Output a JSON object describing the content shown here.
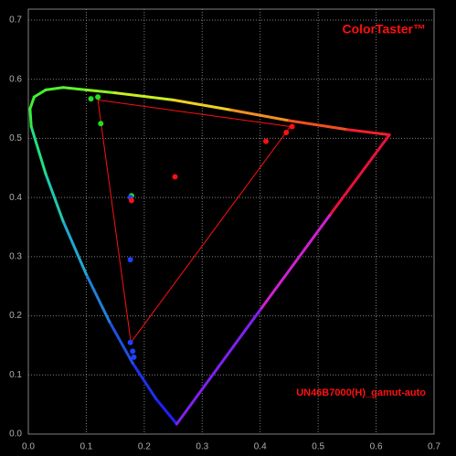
{
  "chart_data": {
    "type": "scatter",
    "title": "ColorTaster™",
    "annotation": "UN46B7000(H)_gamut-auto",
    "xlim": [
      0,
      0.7
    ],
    "ylim": [
      0,
      0.7
    ],
    "xticks": [
      {
        "value": 0,
        "label": "0.0"
      },
      0.1,
      0.2,
      0.3,
      0.4,
      0.5,
      0.6,
      0.7
    ],
    "yticks": [
      {
        "value": 0,
        "label": "0.0"
      },
      0.1,
      0.2,
      0.3,
      0.4,
      0.5,
      0.6,
      0.7
    ],
    "grid": true,
    "locus": {
      "x": [
        0.256,
        0.22,
        0.18,
        0.14,
        0.1,
        0.06,
        0.03,
        0.005,
        0.003,
        0.01,
        0.03,
        0.06,
        0.1,
        0.15,
        0.25,
        0.35,
        0.45,
        0.55,
        0.623,
        0.52,
        0.4,
        0.256
      ],
      "y": [
        0.017,
        0.06,
        0.12,
        0.19,
        0.27,
        0.36,
        0.44,
        0.52,
        0.55,
        0.57,
        0.582,
        0.586,
        0.582,
        0.577,
        0.565,
        0.548,
        0.53,
        0.515,
        0.506,
        0.37,
        0.21,
        0.017
      ],
      "colors": [
        "#2020ff",
        "#2030f0",
        "#2050e0",
        "#2080d8",
        "#20a8d0",
        "#20c8b0",
        "#20e080",
        "#30ee40",
        "#40f030",
        "#40f030",
        "#50f030",
        "#60f030",
        "#90f020",
        "#c8f020",
        "#f0d020",
        "#f09020",
        "#f05020",
        "#f02030",
        "#e8103c",
        "#d020d0",
        "#8020f0",
        "#2020ff"
      ]
    },
    "gamut": {
      "x": [
        0.12,
        0.452,
        0.177,
        0.12
      ],
      "y": [
        0.565,
        0.52,
        0.155,
        0.565
      ],
      "color": "#ff1010"
    },
    "points": {
      "x": [
        0.108,
        0.12,
        0.125,
        0.455,
        0.445,
        0.41,
        0.253,
        0.178,
        0.176,
        0.178,
        0.176,
        0.18,
        0.182,
        0.176
      ],
      "y": [
        0.567,
        0.57,
        0.525,
        0.52,
        0.51,
        0.495,
        0.435,
        0.403,
        0.4,
        0.395,
        0.295,
        0.14,
        0.13,
        0.155
      ],
      "colors": [
        "#20e020",
        "#20e020",
        "#20e020",
        "#ff1010",
        "#ff1010",
        "#ff1010",
        "#ff1010",
        "#20e020",
        "#2040ff",
        "#ff1010",
        "#2040ff",
        "#2040ff",
        "#2040ff",
        "#2040ff"
      ]
    }
  }
}
